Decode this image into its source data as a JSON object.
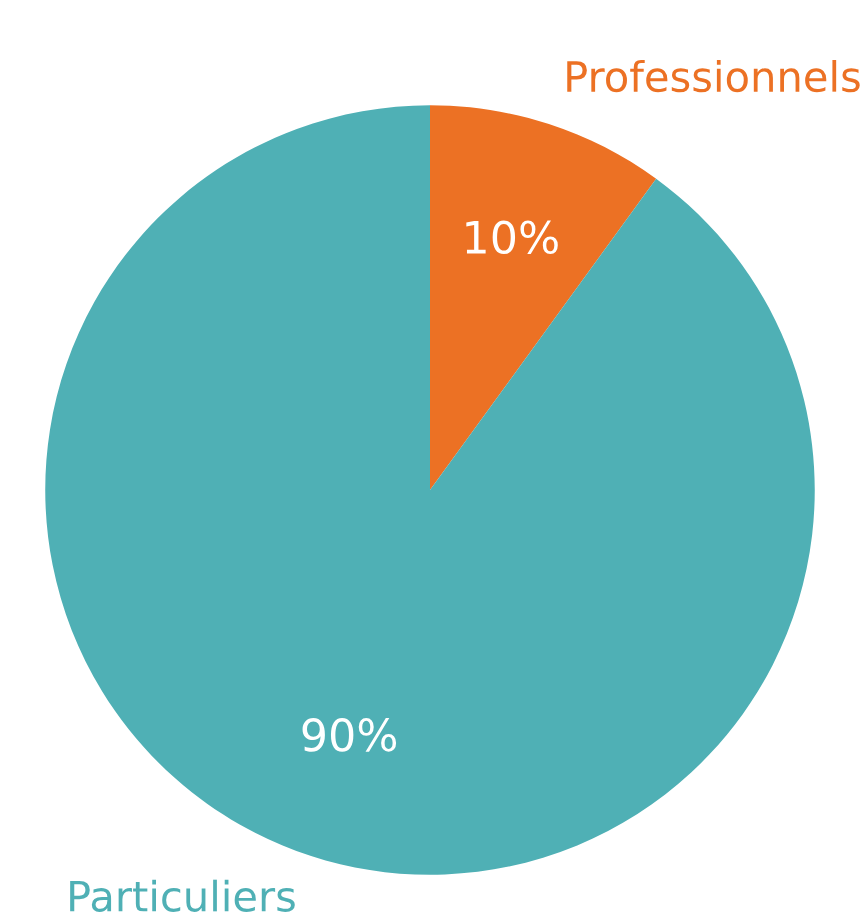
{
  "chart_data": {
    "type": "pie",
    "categories": [
      "Professionnels",
      "Particuliers"
    ],
    "values": [
      10,
      90
    ],
    "colors": [
      "#ec7124",
      "#4fb0b5"
    ],
    "value_labels": [
      "10%",
      "90%"
    ]
  }
}
